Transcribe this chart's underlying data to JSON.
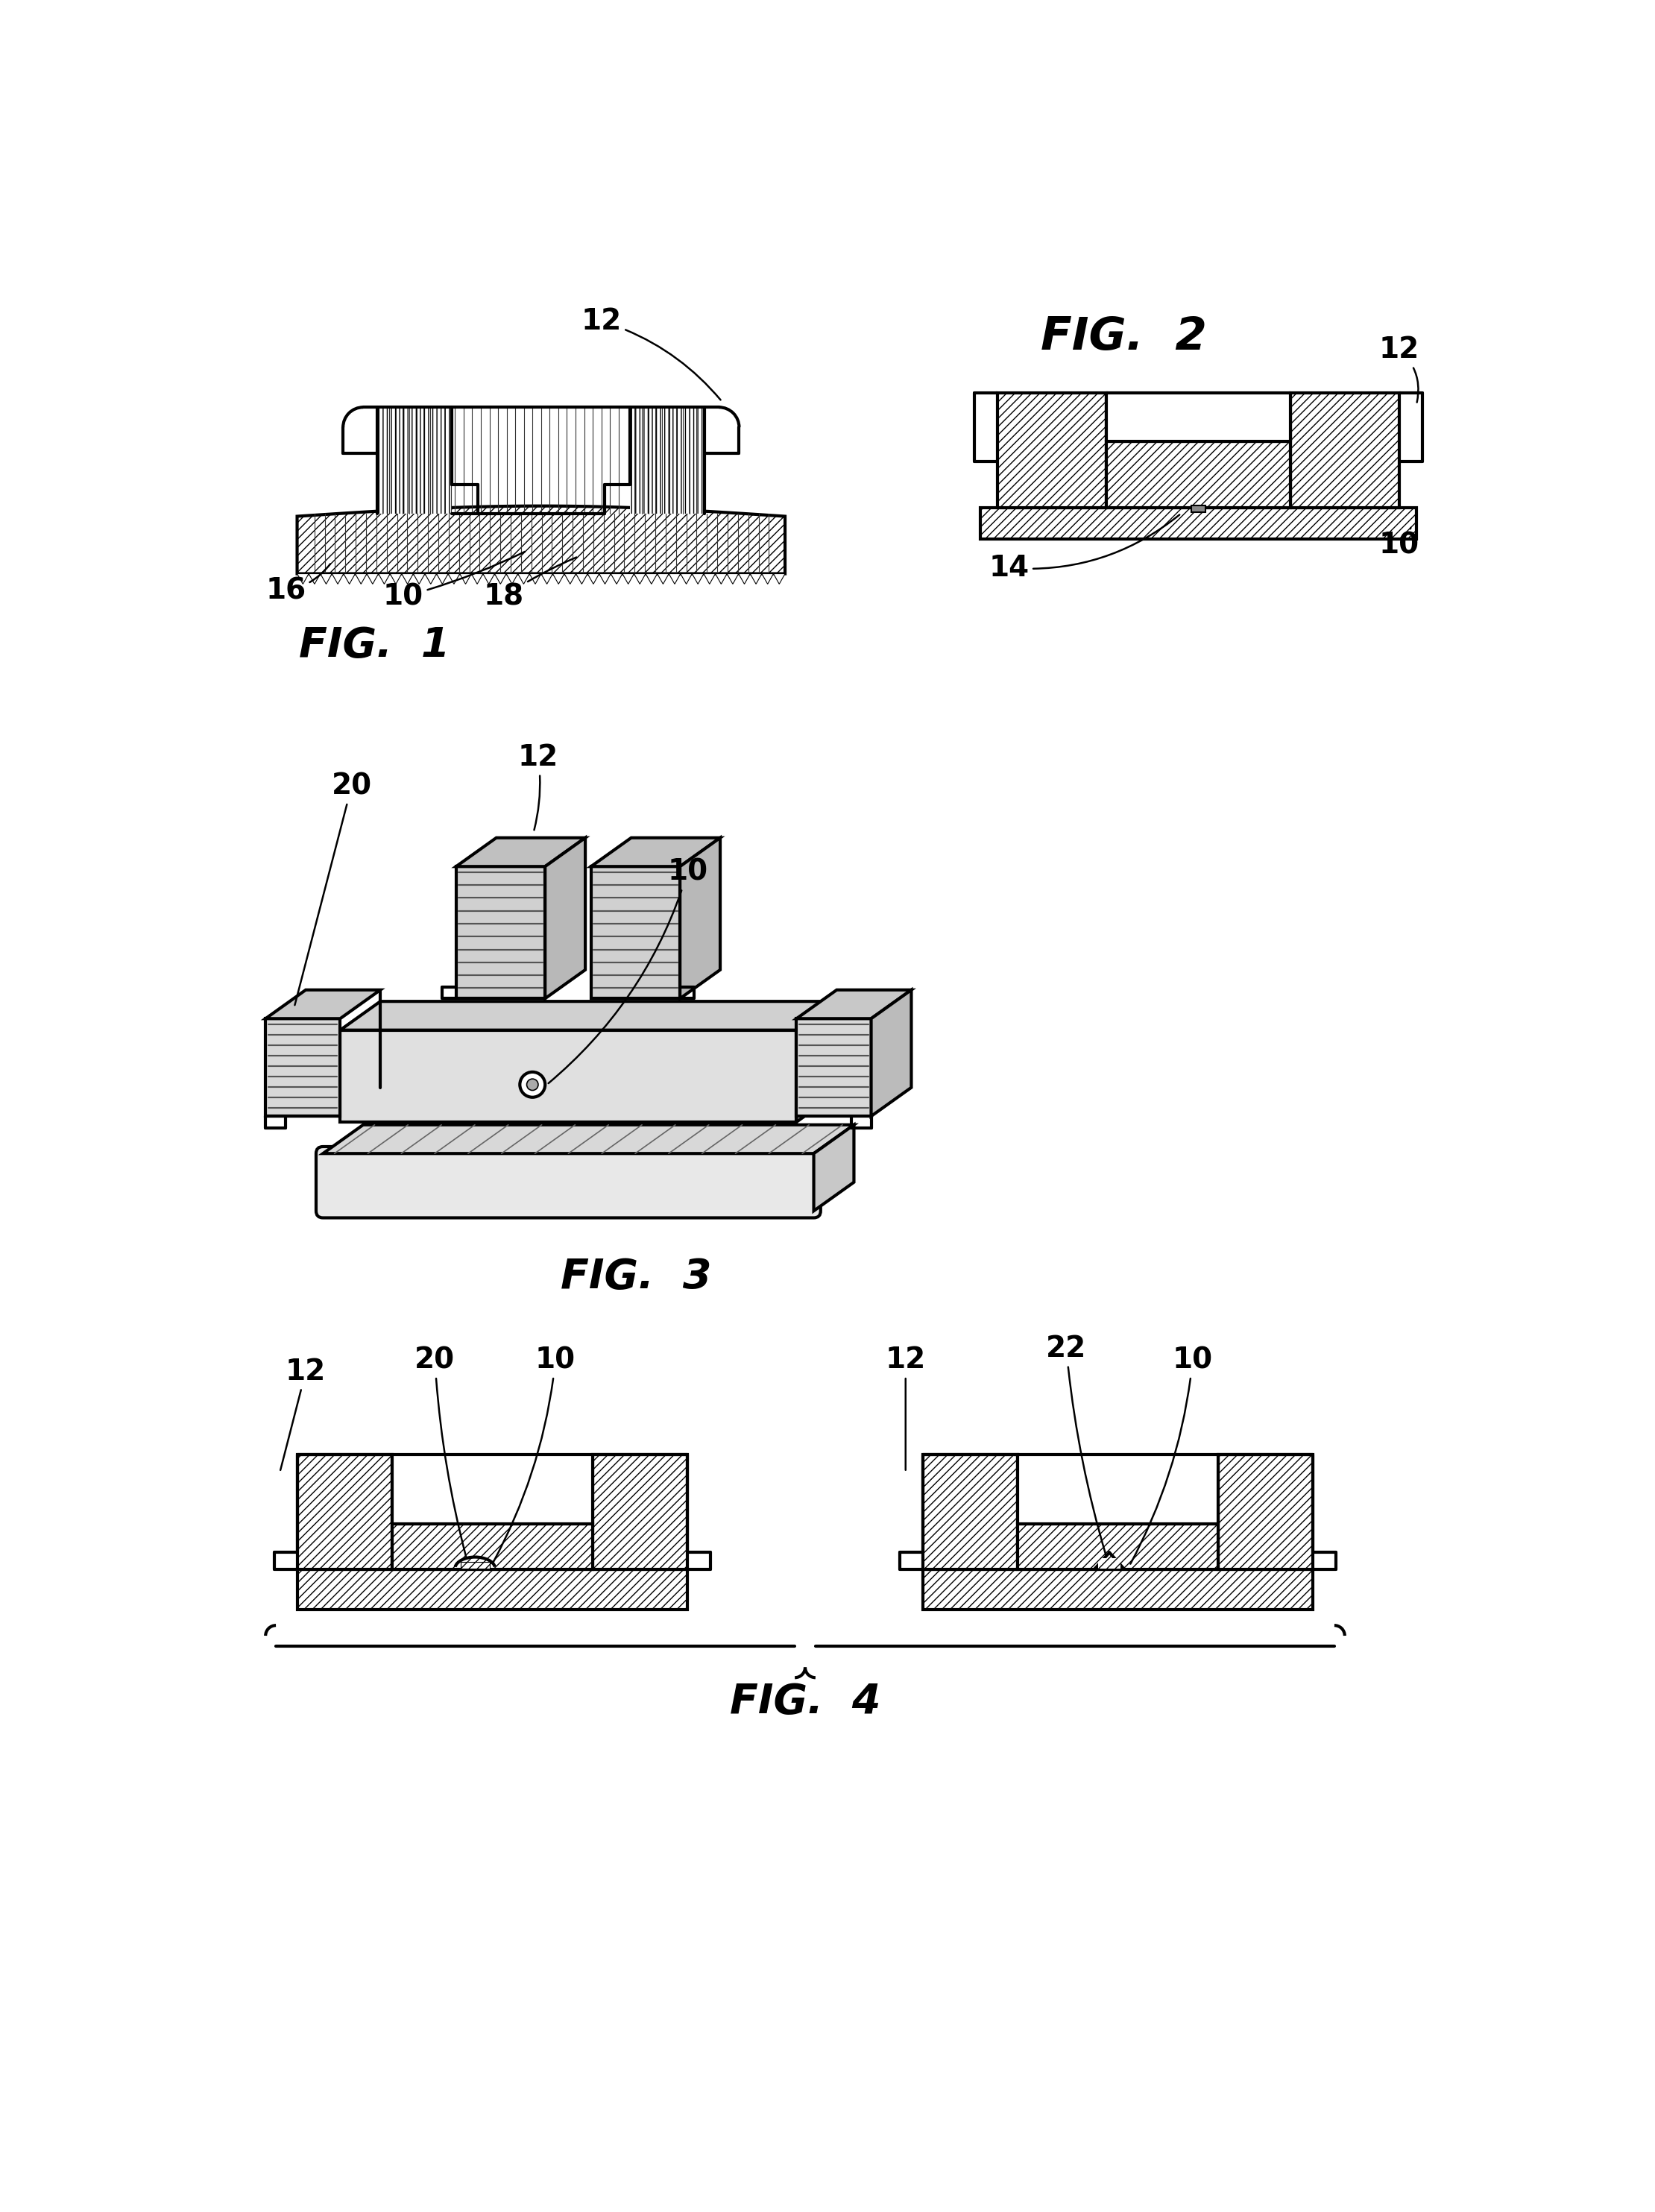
{
  "bg": "#ffffff",
  "lc": "#000000",
  "lw": 3.0,
  "lw_thin": 1.2,
  "fs_fig": 40,
  "fs_ref": 28,
  "fig1_label": "FIG.  1",
  "fig2_label": "FIG.  2",
  "fig3_label": "FIG.  3",
  "fig4_label": "FIG.  4"
}
